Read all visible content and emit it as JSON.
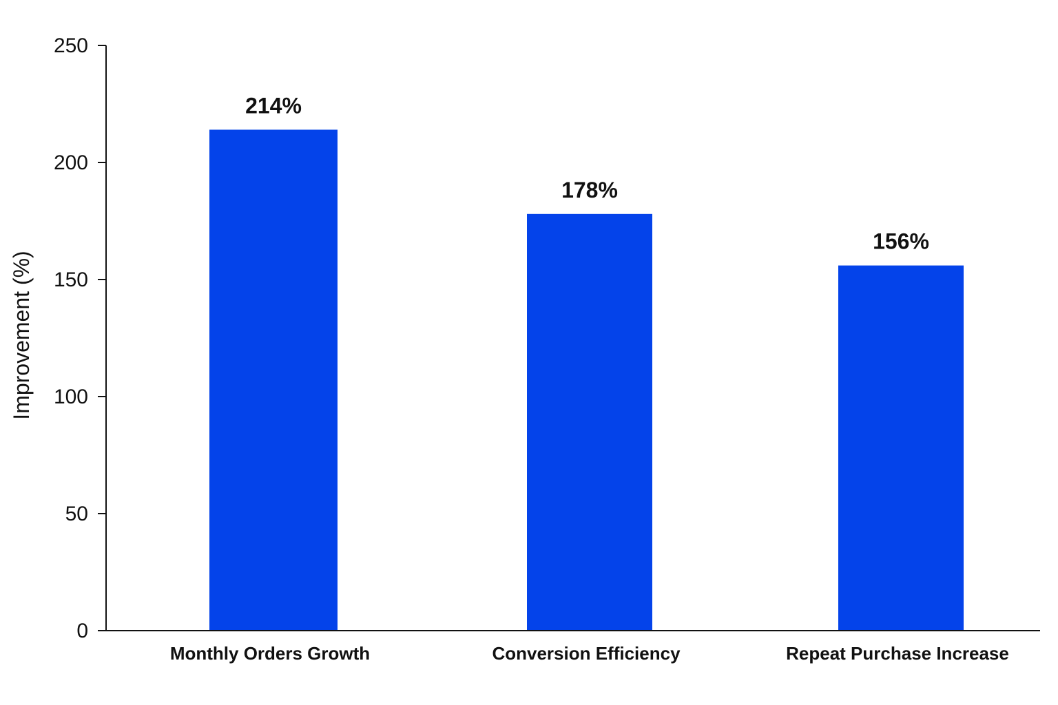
{
  "chart_data": {
    "type": "bar",
    "title": "",
    "xlabel": "",
    "ylabel": "Improvement (%)",
    "categories": [
      "Monthly Orders Growth",
      "Conversion Efficiency",
      "Repeat Purchase Increase"
    ],
    "values": [
      214,
      178,
      156
    ],
    "value_labels": [
      "214%",
      "178%",
      "156%"
    ],
    "ylim": [
      0,
      250
    ],
    "yticks": [
      0,
      50,
      100,
      150,
      200,
      250
    ],
    "grid": false,
    "legend": "none",
    "bar_color": "#0443EA"
  }
}
